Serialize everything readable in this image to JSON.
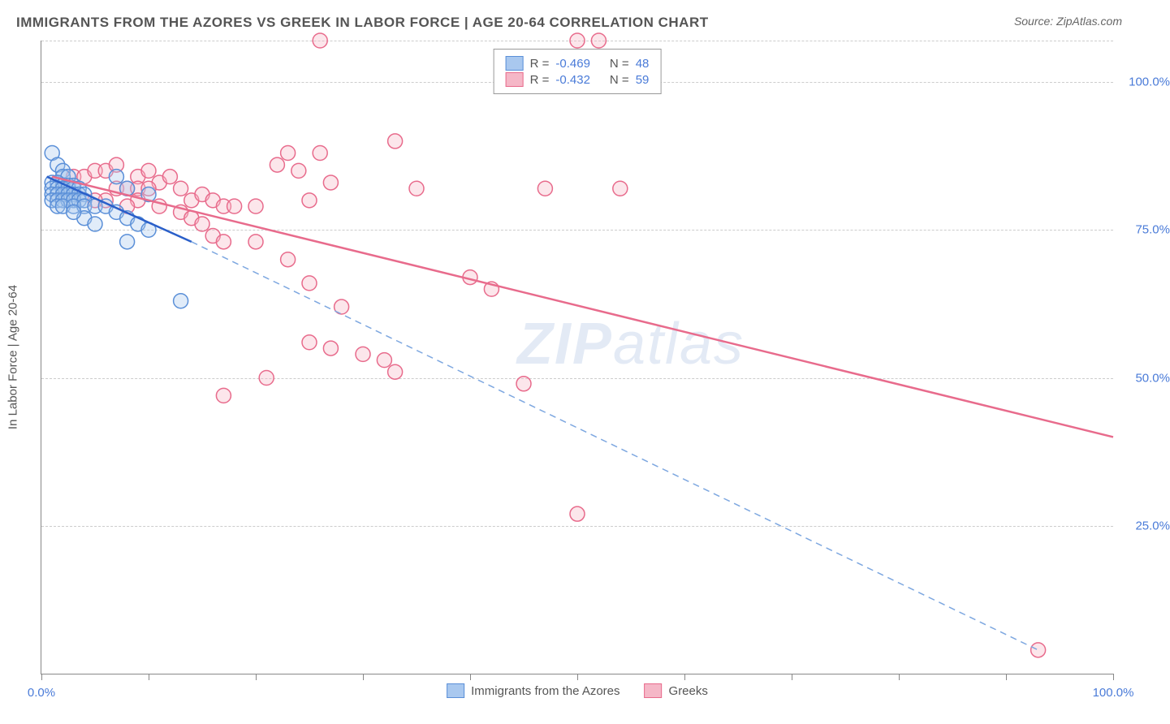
{
  "title": "IMMIGRANTS FROM THE AZORES VS GREEK IN LABOR FORCE | AGE 20-64 CORRELATION CHART",
  "source_label": "Source: ZipAtlas.com",
  "y_axis_label": "In Labor Force | Age 20-64",
  "watermark_bold": "ZIP",
  "watermark_light": "atlas",
  "chart": {
    "type": "scatter",
    "xlim": [
      0,
      100
    ],
    "ylim": [
      0,
      107
    ],
    "x_ticks": [
      0,
      10,
      20,
      30,
      40,
      50,
      60,
      70,
      80,
      90,
      100
    ],
    "x_tick_labels": {
      "0": "0.0%",
      "100": "100.0%"
    },
    "y_grid": [
      25,
      50,
      75,
      100,
      107
    ],
    "y_tick_labels": {
      "25": "25.0%",
      "50": "50.0%",
      "75": "75.0%",
      "100": "100.0%"
    },
    "background_color": "#ffffff",
    "grid_color": "#cccccc",
    "axis_color": "#888888",
    "marker_radius": 9,
    "marker_stroke_width": 1.5,
    "marker_fill_opacity": 0.35,
    "series": [
      {
        "name": "Immigrants from the Azores",
        "color_stroke": "#5a8fd8",
        "color_fill": "#a9c8ef",
        "R": "-0.469",
        "N": "48",
        "trend": {
          "x1": 0.5,
          "y1": 84,
          "x2": 14,
          "y2": 73,
          "extend_x2": 93,
          "extend_y2": 4,
          "width": 2.5,
          "dash_color": "#7da7e0"
        },
        "points": [
          [
            1,
            88
          ],
          [
            1.5,
            86
          ],
          [
            2,
            85
          ],
          [
            2,
            84
          ],
          [
            2.5,
            84
          ],
          [
            1,
            83
          ],
          [
            1.5,
            83
          ],
          [
            2,
            82.5
          ],
          [
            2.5,
            82.5
          ],
          [
            3,
            82.5
          ],
          [
            1,
            82
          ],
          [
            1.5,
            82
          ],
          [
            2,
            82
          ],
          [
            2.5,
            82
          ],
          [
            3,
            82
          ],
          [
            3.5,
            82
          ],
          [
            1,
            81
          ],
          [
            1.5,
            81
          ],
          [
            2,
            81
          ],
          [
            2.5,
            81
          ],
          [
            3,
            81
          ],
          [
            3.5,
            81
          ],
          [
            4,
            81
          ],
          [
            1,
            80
          ],
          [
            1.5,
            80
          ],
          [
            2,
            80
          ],
          [
            2.5,
            80
          ],
          [
            3,
            80
          ],
          [
            3.5,
            80
          ],
          [
            4,
            80
          ],
          [
            1.5,
            79
          ],
          [
            2,
            79
          ],
          [
            3,
            79
          ],
          [
            4,
            79
          ],
          [
            5,
            79
          ],
          [
            6,
            79
          ],
          [
            7,
            84
          ],
          [
            8,
            82
          ],
          [
            10,
            81
          ],
          [
            7,
            78
          ],
          [
            8,
            77
          ],
          [
            9,
            76
          ],
          [
            10,
            75
          ],
          [
            8,
            73
          ],
          [
            13,
            63
          ],
          [
            4,
            77
          ],
          [
            5,
            76
          ],
          [
            3,
            78
          ]
        ]
      },
      {
        "name": "Greeks",
        "color_stroke": "#e86b8c",
        "color_fill": "#f5b7c7",
        "R": "-0.432",
        "N": "59",
        "trend": {
          "x1": 1,
          "y1": 84,
          "x2": 100,
          "y2": 40,
          "width": 2.5
        },
        "points": [
          [
            3,
            84
          ],
          [
            4,
            84
          ],
          [
            5,
            85
          ],
          [
            6,
            85
          ],
          [
            7,
            86
          ],
          [
            9,
            84
          ],
          [
            10,
            85
          ],
          [
            11,
            83
          ],
          [
            12,
            84
          ],
          [
            7,
            82
          ],
          [
            8,
            82
          ],
          [
            9,
            82
          ],
          [
            10,
            82
          ],
          [
            13,
            82
          ],
          [
            14,
            80
          ],
          [
            15,
            81
          ],
          [
            16,
            80
          ],
          [
            17,
            79
          ],
          [
            18,
            79
          ],
          [
            9,
            80
          ],
          [
            6,
            80
          ],
          [
            5,
            80
          ],
          [
            8,
            79
          ],
          [
            11,
            79
          ],
          [
            13,
            78
          ],
          [
            14,
            77
          ],
          [
            15,
            76
          ],
          [
            16,
            74
          ],
          [
            17,
            73
          ],
          [
            20,
            79
          ],
          [
            22,
            86
          ],
          [
            23,
            88
          ],
          [
            24,
            85
          ],
          [
            25,
            80
          ],
          [
            26,
            88
          ],
          [
            26,
            107
          ],
          [
            27,
            83
          ],
          [
            33,
            90
          ],
          [
            35,
            82
          ],
          [
            47,
            82
          ],
          [
            50,
            107
          ],
          [
            52,
            107
          ],
          [
            20,
            73
          ],
          [
            23,
            70
          ],
          [
            25,
            66
          ],
          [
            25,
            56
          ],
          [
            27,
            55
          ],
          [
            30,
            54
          ],
          [
            32,
            53
          ],
          [
            33,
            51
          ],
          [
            17,
            47
          ],
          [
            21,
            50
          ],
          [
            40,
            67
          ],
          [
            42,
            65
          ],
          [
            45,
            49
          ],
          [
            50,
            27
          ],
          [
            54,
            82
          ],
          [
            93,
            4
          ],
          [
            28,
            62
          ]
        ]
      }
    ]
  },
  "legend_bottom": [
    {
      "label": "Immigrants from the Azores",
      "stroke": "#5a8fd8",
      "fill": "#a9c8ef"
    },
    {
      "label": "Greeks",
      "stroke": "#e86b8c",
      "fill": "#f5b7c7"
    }
  ],
  "legend_top_labels": {
    "R_prefix": "R =",
    "N_prefix": "N ="
  }
}
